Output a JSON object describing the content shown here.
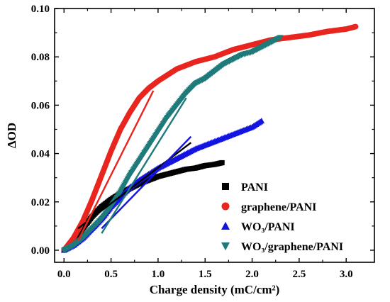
{
  "chart_data": {
    "type": "scatter",
    "xlabel": "Charge density (mC/cm²)",
    "ylabel": "ΔOD",
    "xlim": [
      -0.1,
      3.3
    ],
    "ylim": [
      -0.005,
      0.1
    ],
    "xticks": [
      {
        "v": 0.0,
        "label": "0.0"
      },
      {
        "v": 0.5,
        "label": "0.5"
      },
      {
        "v": 1.0,
        "label": "1.0"
      },
      {
        "v": 1.5,
        "label": "1.5"
      },
      {
        "v": 2.0,
        "label": "2.0"
      },
      {
        "v": 2.5,
        "label": "2.5"
      },
      {
        "v": 3.0,
        "label": "3.0"
      }
    ],
    "yticks": [
      {
        "v": 0.0,
        "label": "0.00"
      },
      {
        "v": 0.02,
        "label": "0.02"
      },
      {
        "v": 0.04,
        "label": "0.04"
      },
      {
        "v": 0.06,
        "label": "0.06"
      },
      {
        "v": 0.08,
        "label": "0.08"
      },
      {
        "v": 0.1,
        "label": "0.10"
      }
    ],
    "grid": false,
    "legend_position": "bottom-right",
    "series": [
      {
        "name": "PANI",
        "marker": "square",
        "color": "#000000",
        "x": [
          0.0,
          0.1,
          0.2,
          0.3,
          0.4,
          0.5,
          0.6,
          0.7,
          0.8,
          0.9,
          1.0,
          1.1,
          1.2,
          1.3,
          1.4,
          1.5,
          1.6,
          1.68
        ],
        "y": [
          0.0,
          0.003,
          0.009,
          0.014,
          0.018,
          0.021,
          0.0235,
          0.0255,
          0.0275,
          0.029,
          0.0305,
          0.0315,
          0.0325,
          0.0335,
          0.034,
          0.035,
          0.0355,
          0.0362
        ],
        "fit": {
          "x": [
            0.15,
            1.35
          ],
          "y": [
            0.009,
            0.0445
          ]
        }
      },
      {
        "name": "graphene/PANI",
        "marker": "circle",
        "color": "#e8251f",
        "x": [
          0.0,
          0.1,
          0.2,
          0.3,
          0.4,
          0.5,
          0.6,
          0.7,
          0.8,
          0.9,
          1.0,
          1.2,
          1.4,
          1.6,
          1.8,
          2.0,
          2.2,
          2.4,
          2.6,
          2.8,
          3.0,
          3.1
        ],
        "y": [
          0.0,
          0.005,
          0.012,
          0.021,
          0.031,
          0.041,
          0.05,
          0.057,
          0.063,
          0.067,
          0.07,
          0.075,
          0.078,
          0.08,
          0.083,
          0.085,
          0.087,
          0.088,
          0.089,
          0.0905,
          0.0915,
          0.0925
        ],
        "fit": {
          "x": [
            0.15,
            0.95
          ],
          "y": [
            0.004,
            0.066
          ]
        }
      },
      {
        "name": "WO₃/PANI",
        "marker": "triangle-up",
        "color": "#1414e0",
        "x": [
          0.0,
          0.1,
          0.2,
          0.3,
          0.4,
          0.5,
          0.6,
          0.7,
          0.8,
          0.9,
          1.0,
          1.2,
          1.4,
          1.6,
          1.8,
          2.0,
          2.1
        ],
        "y": [
          0.0,
          0.002,
          0.005,
          0.009,
          0.013,
          0.018,
          0.022,
          0.026,
          0.029,
          0.0315,
          0.034,
          0.038,
          0.042,
          0.045,
          0.048,
          0.051,
          0.0535
        ],
        "fit": {
          "x": [
            0.4,
            1.35
          ],
          "y": [
            0.009,
            0.047
          ]
        }
      },
      {
        "name": "WO₃/graphene/PANI",
        "marker": "triangle-down",
        "color": "#1f7a7a",
        "x": [
          0.0,
          0.1,
          0.2,
          0.3,
          0.4,
          0.5,
          0.6,
          0.7,
          0.8,
          0.9,
          1.0,
          1.1,
          1.2,
          1.3,
          1.4,
          1.5,
          1.6,
          1.7,
          1.8,
          1.9,
          2.0,
          2.1,
          2.2,
          2.3
        ],
        "y": [
          0.0,
          0.002,
          0.005,
          0.009,
          0.013,
          0.018,
          0.024,
          0.031,
          0.037,
          0.043,
          0.049,
          0.055,
          0.06,
          0.065,
          0.069,
          0.071,
          0.074,
          0.077,
          0.079,
          0.081,
          0.082,
          0.084,
          0.086,
          0.088
        ],
        "fit": {
          "x": [
            0.4,
            1.3
          ],
          "y": [
            0.007,
            0.063
          ]
        }
      }
    ]
  }
}
